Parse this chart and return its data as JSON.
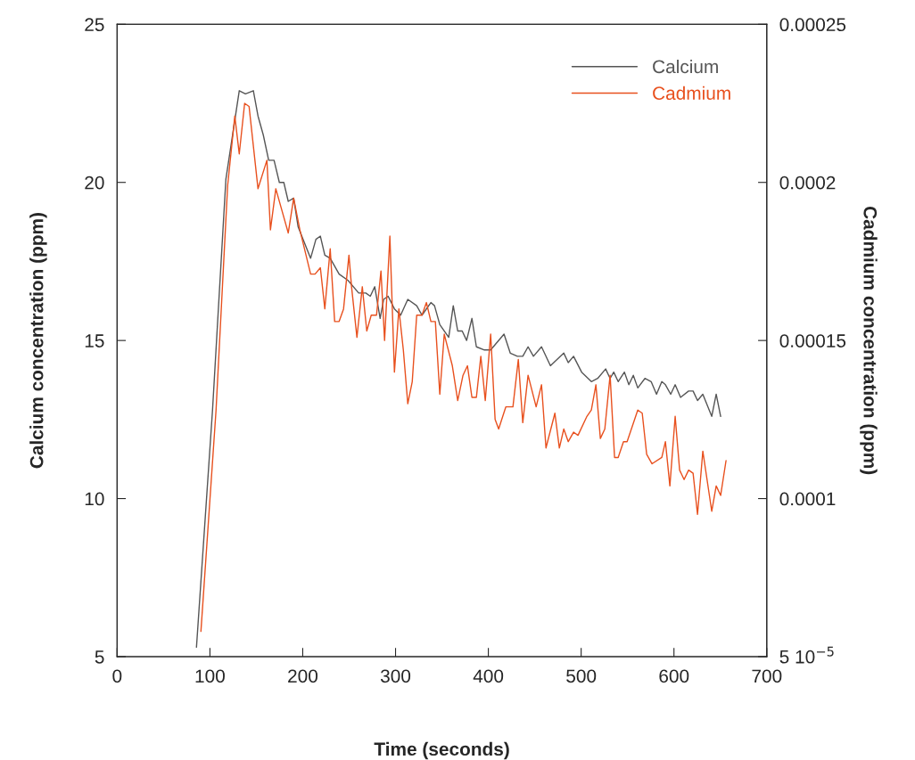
{
  "chart_data": {
    "type": "line",
    "xlabel": "Time (seconds)",
    "ylabel": "Calcium concentration (ppm)",
    "y2label": "Cadmium concentration (ppm)",
    "xlim": [
      0,
      700
    ],
    "xticks": [
      0,
      100,
      200,
      300,
      400,
      500,
      600,
      700
    ],
    "ylim": [
      5,
      25
    ],
    "yticks": [
      5,
      10,
      15,
      20,
      25
    ],
    "y2lim": [
      5e-05,
      0.00025
    ],
    "y2ticks": [
      {
        "value": 5e-05,
        "label": "5 10$^{−5}$"
      },
      0.0001,
      0.00015,
      0.0002,
      0.00025
    ],
    "legend": "top right",
    "grid": false,
    "marker": "none",
    "line_style": "solid",
    "series": [
      {
        "name": "Calcium",
        "color": "#555555",
        "x": [
          85.5,
          102.8,
          117.2,
          131.6,
          138.3,
          146.8,
          151.8,
          157.5,
          163.3,
          169.1,
          174.8,
          179.6,
          184.4,
          190.2,
          195,
          208.5,
          214.2,
          219,
          223.8,
          229.6,
          239.2,
          248.8,
          260.3,
          268,
          272.8,
          277.6,
          283.4,
          287.2,
          292,
          298.8,
          305.5,
          313.2,
          322.8,
          328.5,
          338.1,
          342,
          347.7,
          357.3,
          362.2,
          367,
          371.8,
          376.6,
          382.3,
          387.1,
          395.8,
          402.5,
          416.9,
          423.6,
          431.3,
          437.1,
          442.8,
          448.6,
          457.3,
          466.9,
          481.3,
          486.1,
          491.8,
          500.5,
          511,
          517.8,
          526.4,
          531.2,
          535.1,
          539.9,
          546.6,
          551.4,
          556.2,
          561,
          568.7,
          575.4,
          581.2,
          586.9,
          590.8,
          596.5,
          601.3,
          607.1,
          615.8,
          620.6,
          625.4,
          631.1,
          640.7,
          645.5,
          650.3
        ],
        "values": [
          5.3,
          12.8,
          20.1,
          22.9,
          22.8,
          22.9,
          22.1,
          21.5,
          20.7,
          20.7,
          20,
          20,
          19.4,
          19.5,
          18.6,
          17.6,
          18.2,
          18.3,
          17.7,
          17.6,
          17.1,
          16.9,
          16.5,
          16.5,
          16.4,
          16.7,
          15.7,
          16.3,
          16.4,
          16,
          15.8,
          16.3,
          16.1,
          15.8,
          16.2,
          16.1,
          15.5,
          15.1,
          16.1,
          15.3,
          15.3,
          15,
          15.7,
          14.8,
          14.7,
          14.7,
          15.2,
          14.6,
          14.5,
          14.5,
          14.8,
          14.5,
          14.8,
          14.2,
          14.6,
          14.3,
          14.5,
          14,
          13.7,
          13.8,
          14.1,
          13.8,
          14,
          13.7,
          14,
          13.6,
          13.9,
          13.5,
          13.8,
          13.7,
          13.3,
          13.7,
          13.6,
          13.3,
          13.6,
          13.2,
          13.4,
          13.4,
          13.1,
          13.3,
          12.6,
          13.3,
          12.6
        ]
      },
      {
        "name": "Cadmium",
        "color": "#e8501e",
        "axis": "y2",
        "x": [
          90.3,
          106.6,
          119.1,
          126.8,
          131.6,
          137.4,
          142.2,
          151.8,
          161.4,
          165.2,
          171,
          184.4,
          190.2,
          196.9,
          208.5,
          213.3,
          219,
          223.8,
          229.6,
          234.4,
          239.2,
          244,
          249.8,
          252.6,
          258.4,
          264.2,
          269,
          273.8,
          279.5,
          284.3,
          288.2,
          293.9,
          298.8,
          303.6,
          308.4,
          313.2,
          318,
          322.8,
          328.5,
          333.3,
          338.1,
          342.9,
          347.7,
          352.5,
          361.2,
          367,
          372.7,
          377.5,
          382.3,
          387.1,
          391.9,
          396.7,
          402.5,
          407.3,
          411.1,
          418.8,
          426.5,
          432.3,
          437.1,
          442.8,
          451.5,
          457.3,
          462.1,
          471.7,
          476.5,
          481.3,
          486.1,
          491.8,
          496.6,
          506.2,
          511,
          515.9,
          520.7,
          525.5,
          531.2,
          536,
          539.9,
          545.6,
          549.5,
          561,
          565.8,
          570.6,
          576.4,
          586.9,
          590.8,
          595.6,
          601.3,
          606.1,
          610.9,
          615.8,
          620.6,
          625.4,
          631.1,
          640.7,
          645.5,
          650.3,
          656.1
        ],
        "values": [
          5.8e-05,
          0.000128,
          0.000199,
          0.000221,
          0.000209,
          0.000225,
          0.000224,
          0.000198,
          0.000207,
          0.000185,
          0.000198,
          0.000184,
          0.000195,
          0.000185,
          0.000171,
          0.000171,
          0.000173,
          0.00016,
          0.000179,
          0.000156,
          0.000156,
          0.00016,
          0.000177,
          0.000167,
          0.000151,
          0.000167,
          0.000153,
          0.000158,
          0.000158,
          0.000172,
          0.00015,
          0.000183,
          0.00014,
          0.00016,
          0.000147,
          0.00013,
          0.000137,
          0.000158,
          0.000158,
          0.000162,
          0.000156,
          0.000156,
          0.000133,
          0.000152,
          0.000142,
          0.000131,
          0.000139,
          0.000142,
          0.000132,
          0.000132,
          0.000145,
          0.000131,
          0.000152,
          0.000125,
          0.000122,
          0.000129,
          0.000129,
          0.000144,
          0.000124,
          0.000139,
          0.000129,
          0.000136,
          0.000116,
          0.000127,
          0.000116,
          0.000122,
          0.000118,
          0.000121,
          0.00012,
          0.000126,
          0.000128,
          0.000136,
          0.000119,
          0.000122,
          0.000139,
          0.000113,
          0.000113,
          0.000118,
          0.000118,
          0.000128,
          0.000127,
          0.000114,
          0.000111,
          0.000113,
          0.000118,
          0.000104,
          0.000126,
          0.000109,
          0.000106,
          0.000109,
          0.000108,
          9.5e-05,
          0.000115,
          9.6e-05,
          0.000104,
          0.000101,
          0.000112
        ]
      }
    ]
  }
}
